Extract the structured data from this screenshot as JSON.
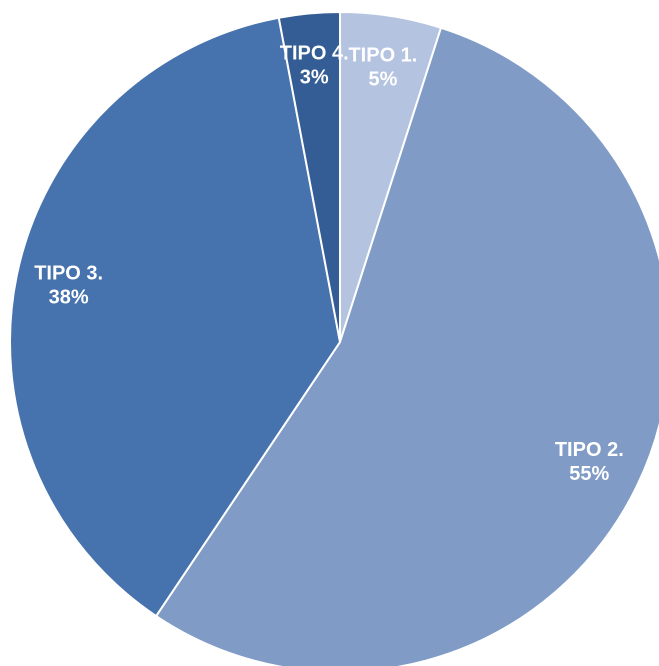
{
  "chart_data": {
    "type": "pie",
    "categories": [
      "TIPO 1.",
      "TIPO 2.",
      "TIPO 3.",
      "TIPO 4."
    ],
    "values": [
      5,
      55,
      38,
      3
    ],
    "value_labels": [
      "5%",
      "55%",
      "38%",
      "3%"
    ],
    "colors": [
      "#b4c3e0",
      "#7f9bc6",
      "#4672ad",
      "#355d95"
    ]
  }
}
